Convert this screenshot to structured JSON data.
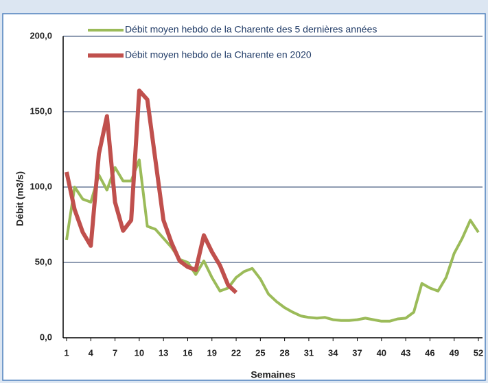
{
  "chart_data": {
    "type": "line",
    "x": [
      1,
      2,
      3,
      4,
      5,
      6,
      7,
      8,
      9,
      10,
      11,
      12,
      13,
      14,
      15,
      16,
      17,
      18,
      19,
      20,
      21,
      22,
      23,
      24,
      25,
      26,
      27,
      28,
      29,
      30,
      31,
      32,
      33,
      34,
      35,
      36,
      37,
      38,
      39,
      40,
      41,
      42,
      43,
      44,
      45,
      46,
      47,
      48,
      49,
      50,
      51,
      52
    ],
    "series": [
      {
        "name": "Débit moyen hebdo de la Charente des 5 dernières années",
        "color": "#9bbb59",
        "values": [
          65,
          100,
          92,
          90,
          108,
          98,
          113,
          104,
          104,
          118,
          74,
          72,
          66,
          60,
          52,
          50,
          42,
          51,
          40,
          31,
          33,
          40,
          44,
          46,
          39,
          29,
          24,
          20,
          17,
          14.5,
          13.5,
          13,
          13.5,
          12,
          11.5,
          11.5,
          12,
          13,
          12,
          11,
          11,
          12.5,
          13,
          17,
          36,
          33,
          31,
          40,
          56,
          66,
          78,
          70
        ]
      },
      {
        "name": "Débit moyen hebdo de la Charente en 2020",
        "color": "#c0504d",
        "values": [
          110,
          85,
          70,
          61,
          122,
          147,
          90,
          71,
          78,
          164,
          158,
          118,
          78,
          63,
          51,
          47,
          45,
          68,
          57,
          48,
          35,
          30,
          null,
          null,
          null,
          null,
          null,
          null,
          null,
          null,
          null,
          null,
          null,
          null,
          null,
          null,
          null,
          null,
          null,
          null,
          null,
          null,
          null,
          null,
          null,
          null,
          null,
          null,
          null,
          null,
          null,
          null
        ]
      }
    ],
    "xlim": [
      1,
      52
    ],
    "xticks": [
      1,
      4,
      7,
      10,
      13,
      16,
      19,
      22,
      25,
      28,
      31,
      34,
      37,
      40,
      43,
      46,
      49,
      52
    ],
    "ylim": [
      0,
      200
    ],
    "yticks": [
      {
        "value": 0,
        "label": "0,0"
      },
      {
        "value": 50,
        "label": "50,0"
      },
      {
        "value": 100,
        "label": "100,0"
      },
      {
        "value": 150,
        "label": "150,0"
      },
      {
        "value": 200,
        "label": "200,0"
      }
    ],
    "xlabel": "Semaines",
    "ylabel": "Débit (m3/s)",
    "grid": true
  }
}
